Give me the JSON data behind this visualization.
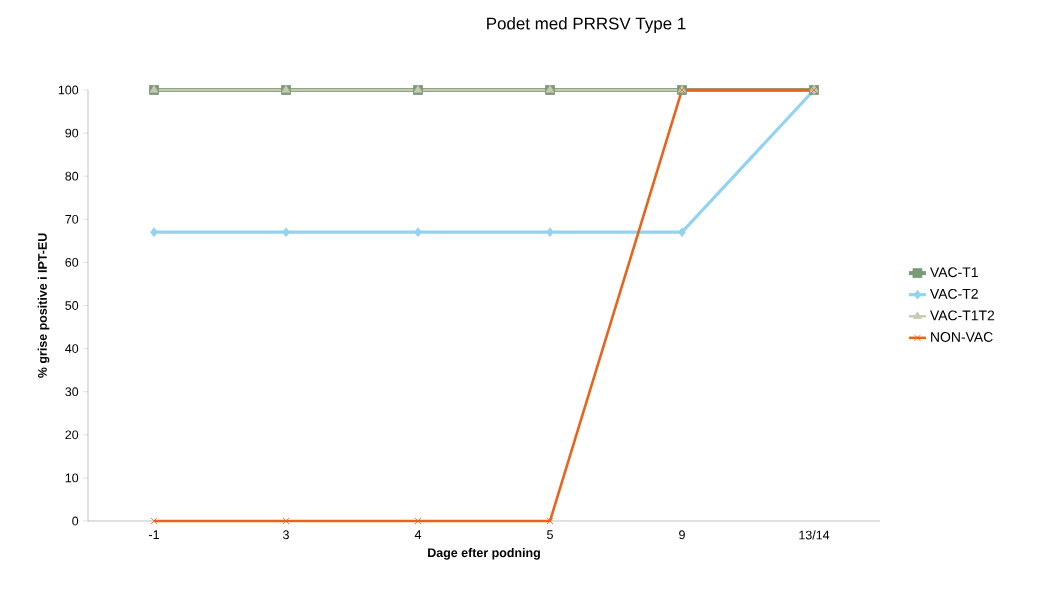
{
  "chart_data": {
    "type": "line",
    "title": "Podet med PRRSV Type 1",
    "xlabel": "Dage efter podning",
    "ylabel": "% grise positive i IPT-EU",
    "categories": [
      "-1",
      "3",
      "4",
      "5",
      "9",
      "13/14"
    ],
    "series": [
      {
        "name": "VAC-T1",
        "color": "#7a9a78",
        "marker": "square",
        "values": [
          100,
          100,
          100,
          100,
          100,
          100
        ]
      },
      {
        "name": "VAC-T2",
        "color": "#92d3f0",
        "marker": "diamond",
        "values": [
          67,
          67,
          67,
          67,
          67,
          100
        ]
      },
      {
        "name": "VAC-T1T2",
        "color": "#c9c8b0",
        "marker": "triangle",
        "values": [
          100,
          100,
          100,
          100,
          100,
          100
        ]
      },
      {
        "name": "NON-VAC",
        "color": "#e8641b",
        "marker": "cross",
        "values": [
          0,
          0,
          0,
          0,
          100,
          100
        ]
      }
    ],
    "ylim": [
      0,
      100
    ],
    "yticks": [
      0,
      10,
      20,
      30,
      40,
      50,
      60,
      70,
      80,
      90,
      100
    ],
    "grid": false,
    "legend": "right"
  }
}
